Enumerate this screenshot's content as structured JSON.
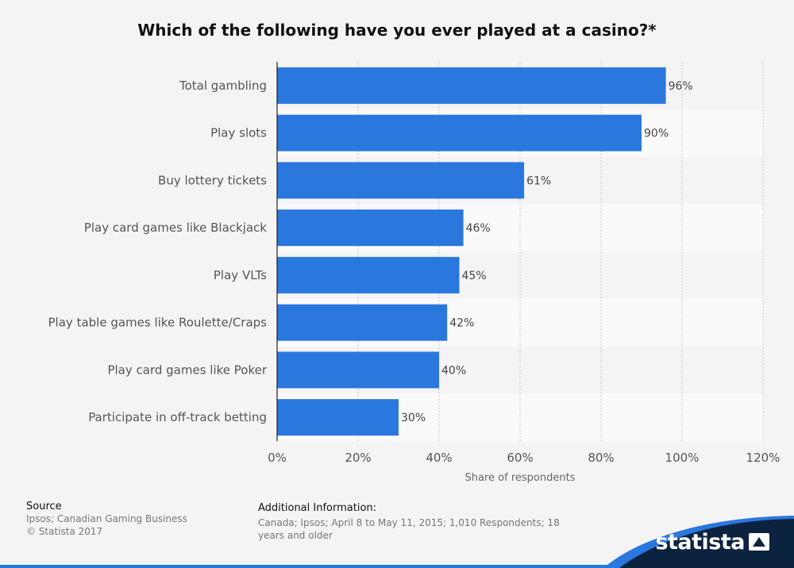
{
  "chart_data": {
    "type": "bar",
    "orientation": "horizontal",
    "title": "Which of the following have you ever played at a casino?*",
    "categories": [
      "Total gambling",
      "Play slots",
      "Buy lottery tickets",
      "Play card games like Blackjack",
      "Play VLTs",
      "Play table games like Roulette/Craps",
      "Play card games like Poker",
      "Participate in off-track betting"
    ],
    "values": [
      96,
      90,
      61,
      46,
      45,
      42,
      40,
      30
    ],
    "value_labels": [
      "96%",
      "90%",
      "61%",
      "46%",
      "45%",
      "42%",
      "40%",
      "30%"
    ],
    "xlabel": "Share of respondents",
    "ylabel": "",
    "xlim": [
      0,
      120
    ],
    "ticks": [
      0,
      20,
      40,
      60,
      80,
      100,
      120
    ],
    "tick_labels": [
      "0%",
      "20%",
      "40%",
      "60%",
      "80%",
      "100%",
      "120%"
    ],
    "grid": true,
    "bar_color": "#2a77de"
  },
  "footer": {
    "source_heading": "Source",
    "source_lines": [
      "Ipsos; Canadian Gaming Business",
      "© Statista 2017"
    ],
    "additional_heading": "Additional Information:",
    "additional_text": "Canada; Ipsos; April 8 to May 11, 2015; 1,010 Respondents; 18 years and older"
  },
  "brand": {
    "name": "statista",
    "icon": "statista-logo-icon",
    "band_color": "#0c2340",
    "accent_color": "#2a77de"
  }
}
